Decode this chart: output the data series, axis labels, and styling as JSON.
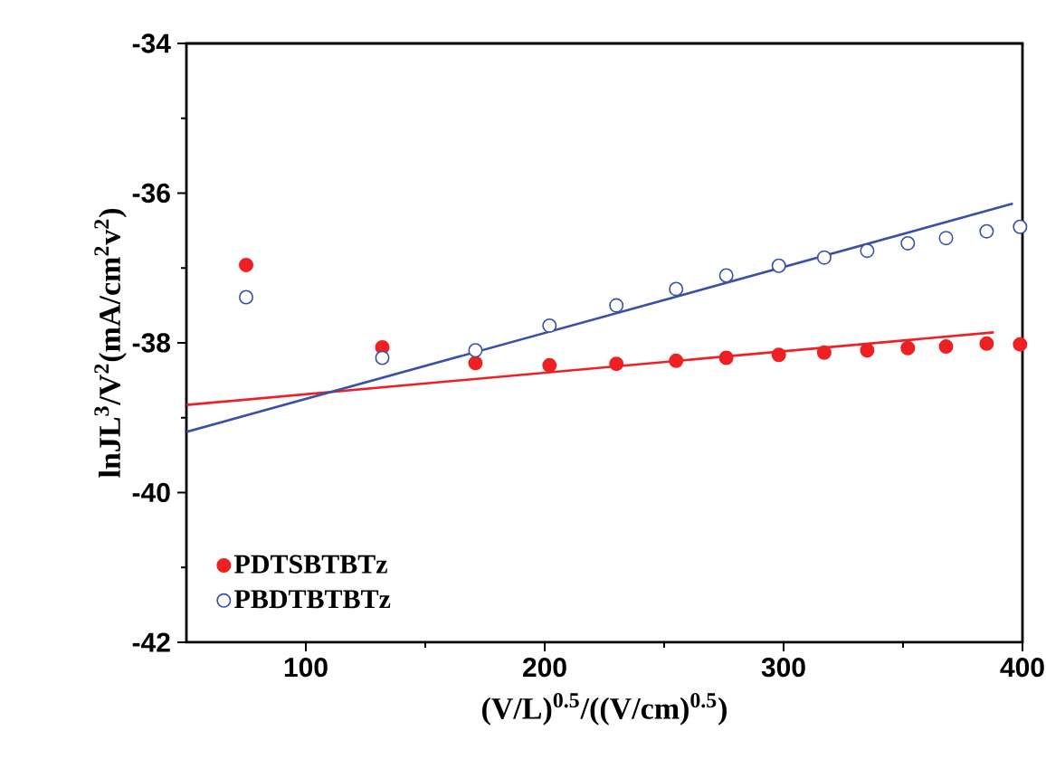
{
  "chart_data": {
    "type": "scatter",
    "xlabel": "(V/L)$^{0.5}$/((V/cm)$^{0.5}$)",
    "ylabel": "lnJL$^{3}$/V$^{2}$(mA/cm$^{2}$v$^{2}$)",
    "xlim": [
      50,
      400
    ],
    "xticks": [
      100,
      200,
      300,
      400
    ],
    "ylim": [
      -42,
      -34
    ],
    "yticks": [
      -42,
      -40,
      -38,
      -36,
      -34
    ],
    "legend": "bottom left",
    "grid": false,
    "series": [
      {
        "name": "PDTSBTBTz",
        "marker": "circle",
        "color": "#ee2024",
        "x": [
          75,
          132,
          171,
          202,
          230,
          255,
          276,
          298,
          317,
          335,
          352,
          368,
          385,
          399
        ],
        "values": [
          -36.96,
          -38.06,
          -38.27,
          -38.3,
          -38.28,
          -38.24,
          -38.2,
          -38.16,
          -38.13,
          -38.1,
          -38.07,
          -38.05,
          -38.01,
          -38.02
        ]
      },
      {
        "name": "PBDTBTBTz",
        "marker": "circle",
        "color": "#3a4fa8",
        "x": [
          75,
          132,
          171,
          202,
          230,
          255,
          276,
          298,
          317,
          335,
          352,
          368,
          385,
          399
        ],
        "values": [
          -37.39,
          -38.2,
          -38.1,
          -37.77,
          -37.5,
          -37.28,
          -37.1,
          -36.97,
          -36.86,
          -36.77,
          -36.67,
          -36.6,
          -36.51,
          -36.45
        ]
      },
      {
        "type": "line",
        "marker": "none",
        "color": "#ee2024",
        "x": [
          50,
          388
        ],
        "values": [
          -38.83,
          -37.86
        ]
      },
      {
        "type": "line",
        "marker": "none",
        "color": "#3a4fa8",
        "x": [
          50,
          396
        ],
        "values": [
          -39.19,
          -36.14
        ]
      }
    ]
  }
}
